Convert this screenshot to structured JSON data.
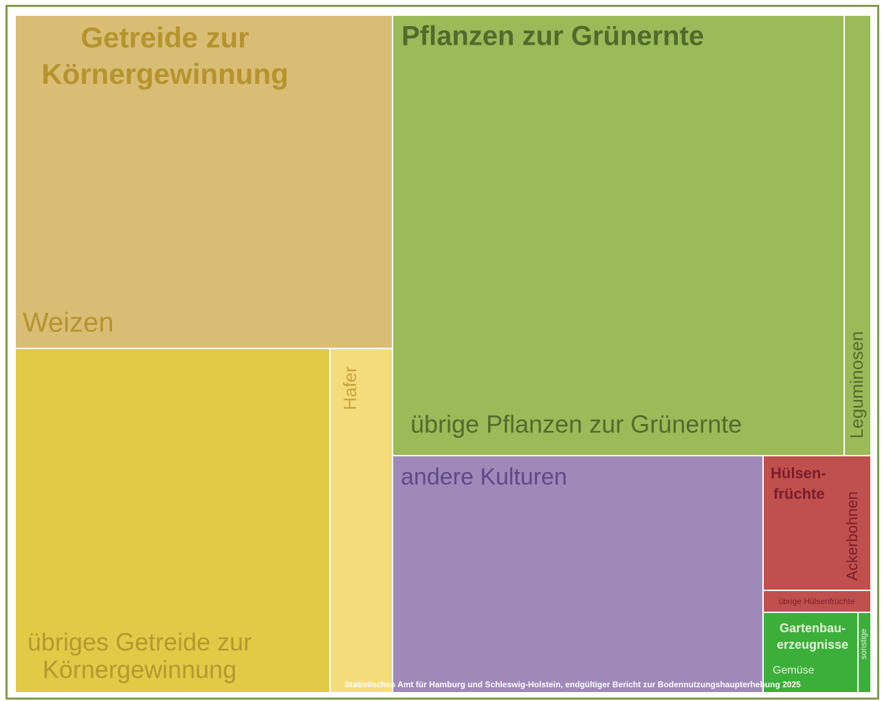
{
  "groups": [
    {
      "title": [
        "Getreide zur",
        "Körnergewinnung"
      ],
      "items": [
        "Weizen",
        [
          "übriges Getreide zur",
          "Körnergewinnung"
        ],
        "Hafer"
      ]
    },
    {
      "title": [
        "Pflanzen zur Grünernte"
      ],
      "items": [
        "übrige Pflanzen zur Grünernte",
        "Leguminosen"
      ]
    },
    {
      "items": [
        "andere Kulturen"
      ]
    },
    {
      "title": [
        "Hülsen-",
        "früchte"
      ],
      "items": [
        "Ackerbohnen",
        "übrige Hülsenfrüchte"
      ]
    },
    {
      "title": [
        "Gartenbau-",
        "erzeugnisse"
      ],
      "items": [
        "Gemüse",
        "sonstige"
      ]
    }
  ],
  "source": "Statistisches Amt für Hamburg und Schleswig-Holstein, endgültiger Bericht zur Bodennutzungshaupterhebung 2025"
}
